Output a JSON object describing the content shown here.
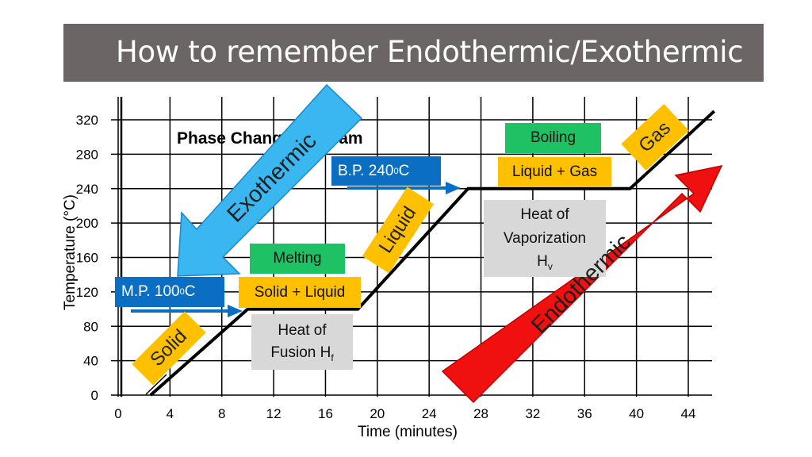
{
  "header": {
    "title": "How to remember Endothermic/Exothermic"
  },
  "chart_data": {
    "type": "line",
    "title": "Phase Change Diagram",
    "xlabel": "Time (minutes)",
    "ylabel": "Temperature (°C)",
    "x_ticks": [
      "0",
      "4",
      "8",
      "12",
      "16",
      "20",
      "24",
      "28",
      "32",
      "36",
      "40",
      "44"
    ],
    "y_ticks": [
      "0",
      "40",
      "80",
      "120",
      "160",
      "200",
      "240",
      "280",
      "320"
    ],
    "xlim": [
      0,
      44
    ],
    "ylim": [
      0,
      320
    ],
    "grid": true,
    "series": [
      {
        "x": [
          2.5,
          10,
          18.5,
          27,
          39.5,
          46
        ],
        "y": [
          0,
          100,
          100,
          240,
          240,
          330
        ]
      }
    ]
  },
  "labels": {
    "melting": "Melting",
    "solid_liquid": "Solid + Liquid",
    "mp": "M.P. 100",
    "mp_sup": "0",
    "mp_unit": "C",
    "heat_fusion_line1": "Heat of",
    "heat_fusion_line2": "Fusion H",
    "heat_fusion_sub": "f",
    "boiling": "Boiling",
    "liquid_gas": "Liquid + Gas",
    "bp": "B.P. 240",
    "bp_sup": "0",
    "bp_unit": "C",
    "heat_vap_line1": "Heat of",
    "heat_vap_line2": "Vaporization",
    "heat_vap_line3": "H",
    "heat_vap_sub": "v",
    "solid": "Solid",
    "liquid": "Liquid",
    "gas": "Gas",
    "exothermic": "Exothermic",
    "endothermic": "Endothermic"
  },
  "colors": {
    "title_bar": "#6b6665",
    "green": "#1ec264",
    "yellow": "#ffc000",
    "blue": "#0a6fc2",
    "grey": "#d8d8d8",
    "exo_arrow": "#3ab7f0",
    "endo_arrow": "#f01010"
  }
}
